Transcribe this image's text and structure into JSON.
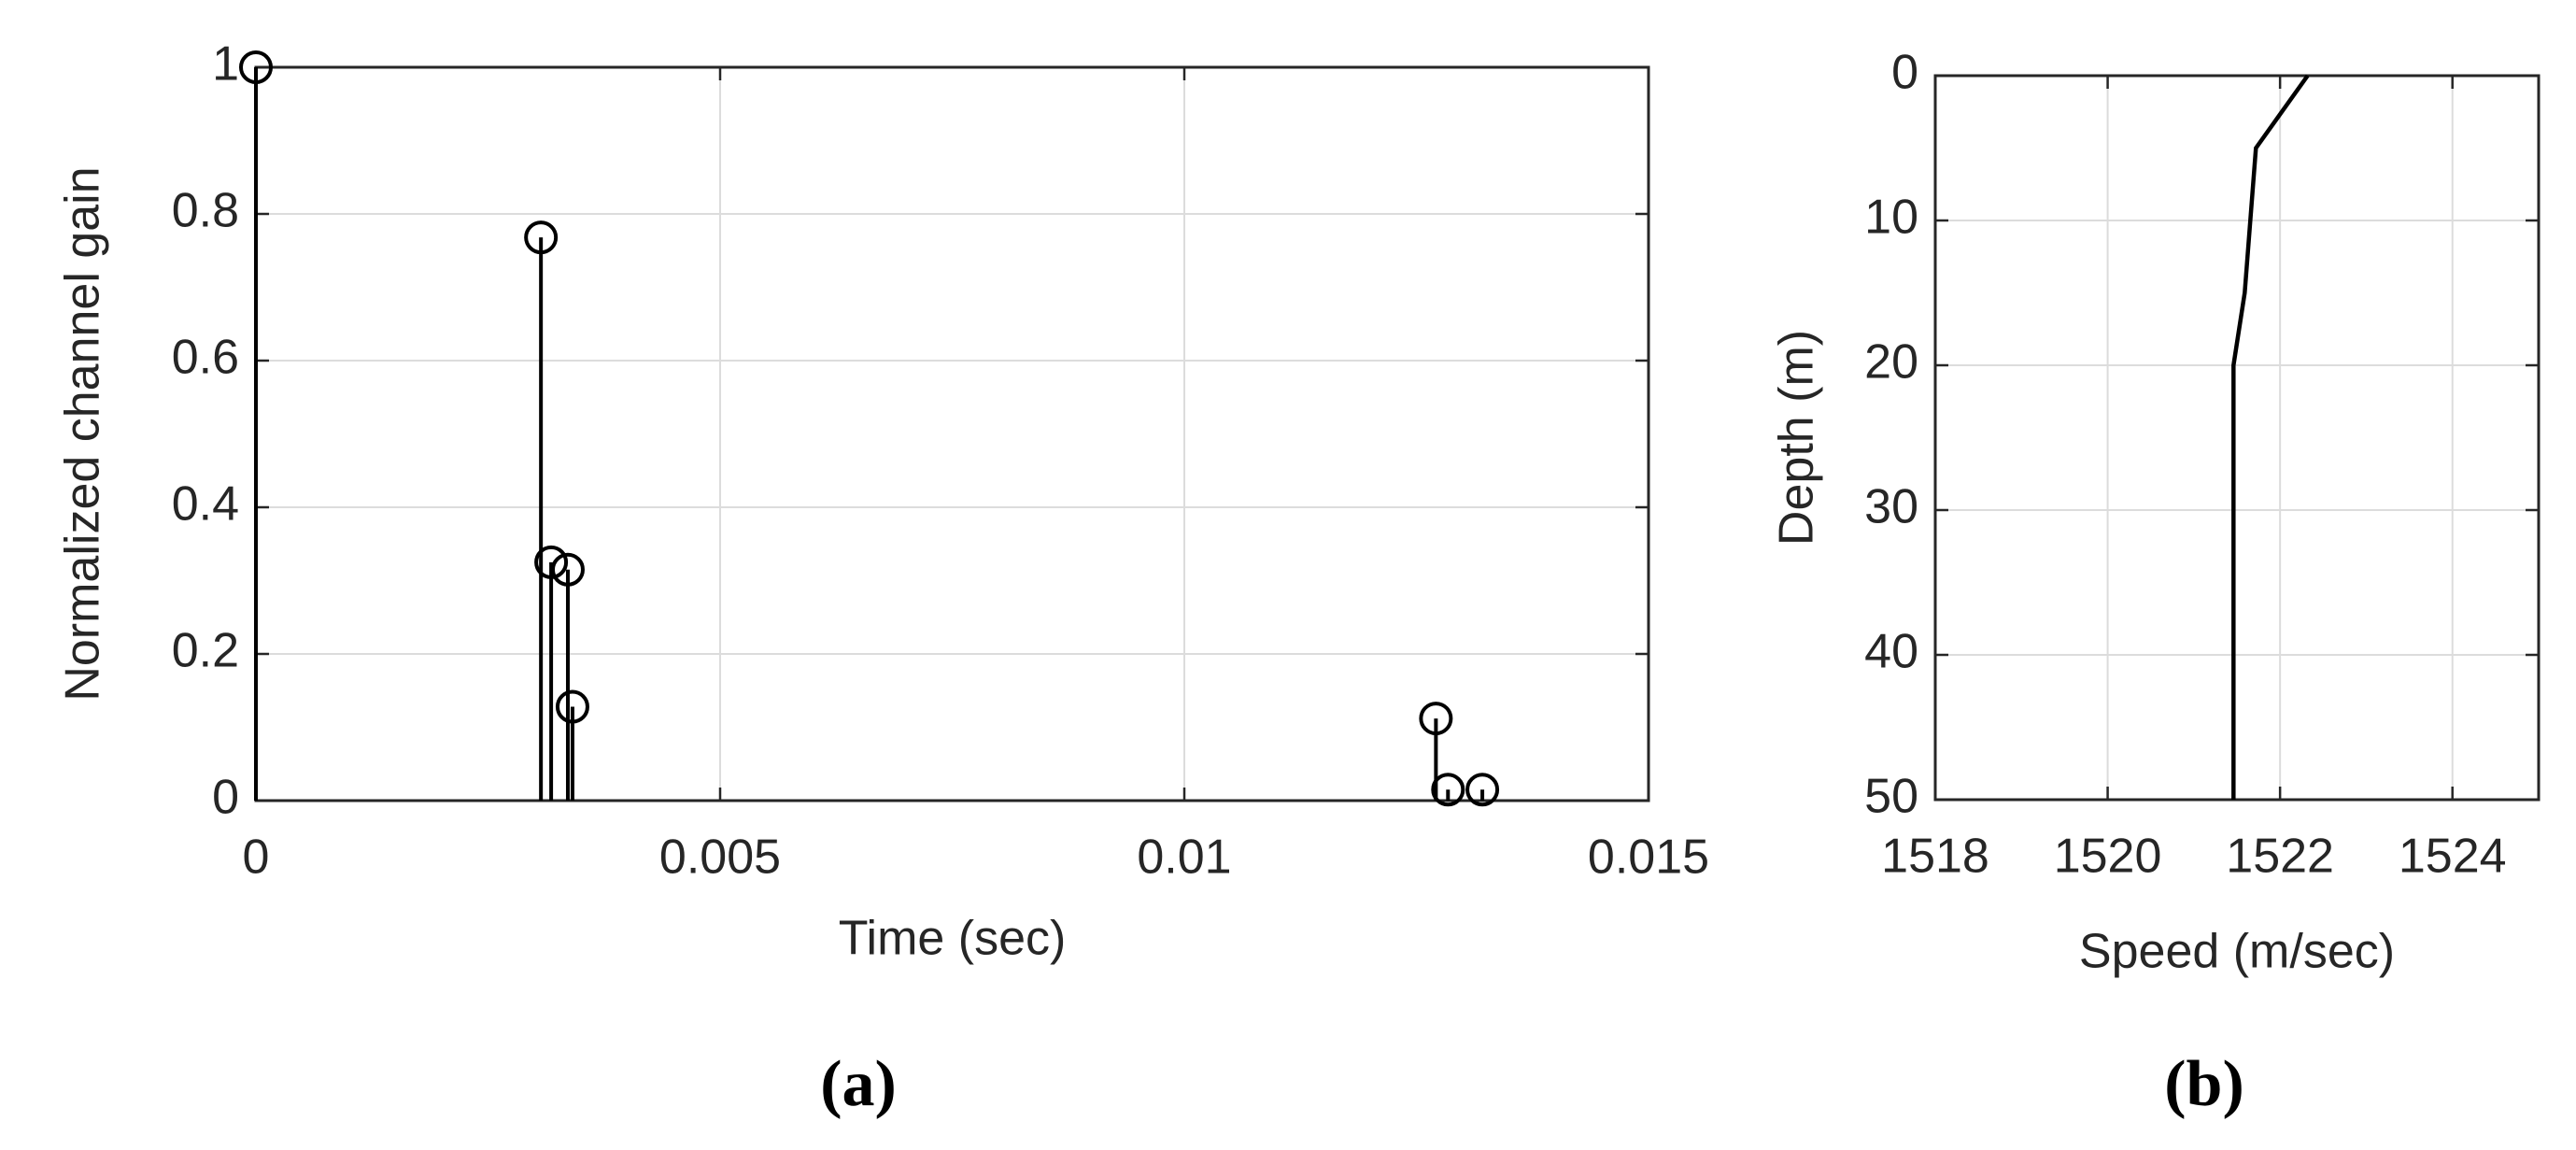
{
  "chart_data": [
    {
      "type": "stem",
      "xlabel": "Time (sec)",
      "ylabel": "Normalized channel gain",
      "x": [
        0,
        0.00307,
        0.00318,
        0.00336,
        0.00341,
        0.01271,
        0.01284,
        0.01321
      ],
      "values": [
        1,
        0.768,
        0.325,
        0.315,
        0.128,
        0.112,
        0.015,
        0.015
      ],
      "color": "#000000",
      "xlim": [
        0,
        0.015
      ],
      "xticks": [
        0,
        0.005,
        0.01,
        0.015
      ],
      "ylim": [
        0,
        1
      ],
      "yticks": [
        0,
        0.2,
        0.4,
        0.6,
        0.8,
        1
      ],
      "grid": true,
      "caption": "(a)"
    },
    {
      "type": "line",
      "xlabel": "Speed (m/sec)",
      "ylabel": "Depth (m)",
      "x": [
        1522.32,
        1521.72,
        1521.59,
        1521.46,
        1521.46
      ],
      "values": [
        0,
        5,
        15,
        20,
        50
      ],
      "color": "#000000",
      "xlim": [
        1518,
        1525
      ],
      "xticks": [
        1518,
        1520,
        1522,
        1524
      ],
      "ylim": [
        0,
        50
      ],
      "yticks": [
        0,
        10,
        20,
        30,
        40,
        50
      ],
      "y_reversed": true,
      "grid": true,
      "caption": "(b)"
    }
  ]
}
